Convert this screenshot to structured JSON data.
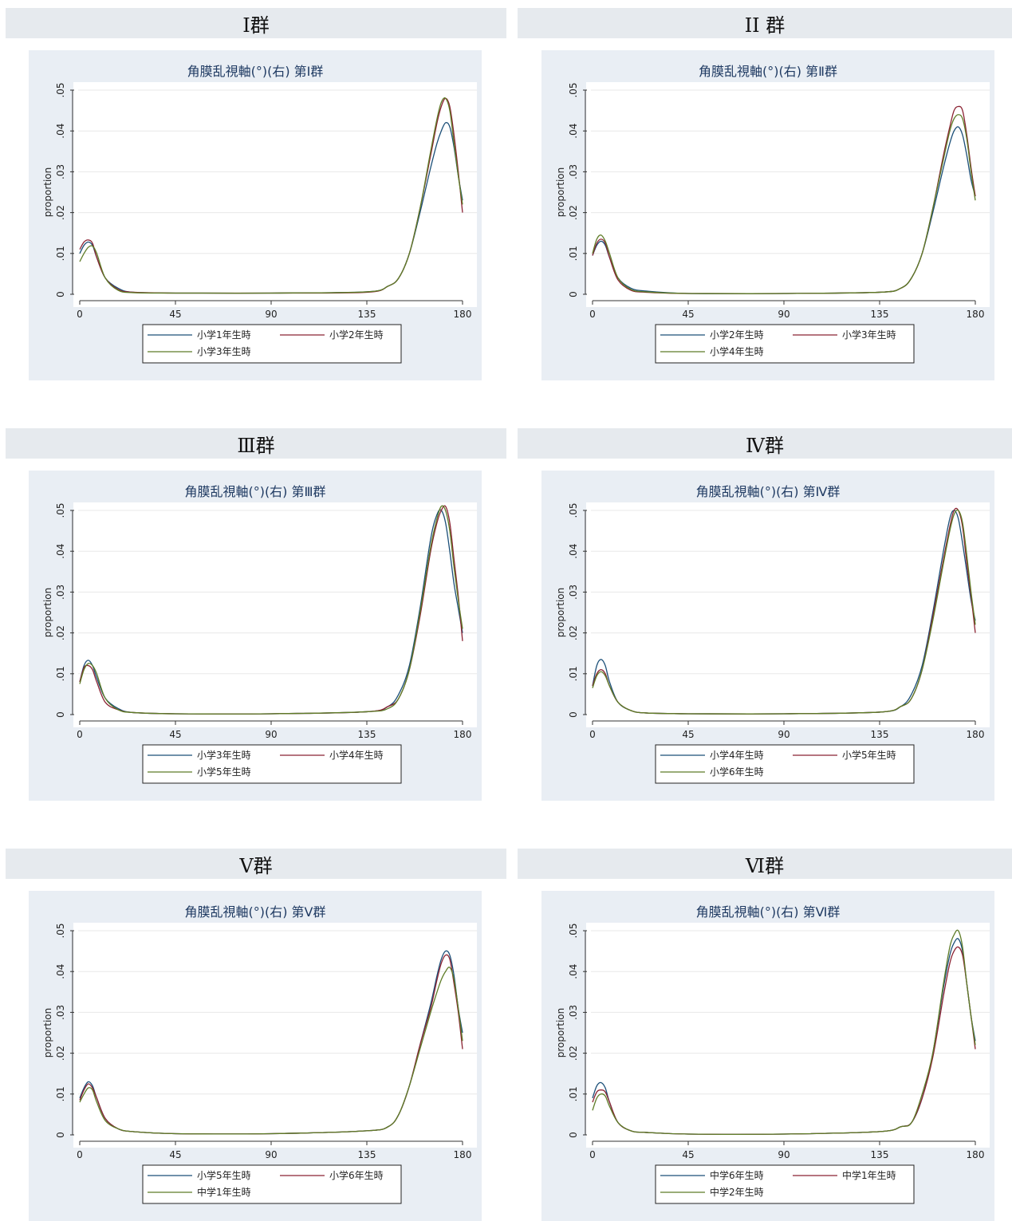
{
  "headers": [
    "Ⅰ群",
    "II 群",
    "Ⅲ群",
    "Ⅳ群",
    "Ⅴ群",
    "Ⅵ群"
  ],
  "series_colors": [
    "#1b4f78",
    "#8b2333",
    "#5e7c27"
  ],
  "chart_data": [
    {
      "type": "line",
      "title": "角膜乱視軸(°)(右) 第Ⅰ群",
      "xlabel": "",
      "ylabel": "proportion",
      "xlim": [
        0,
        180
      ],
      "ylim": [
        0,
        0.05
      ],
      "xticks": [
        "0",
        "45",
        "90",
        "135",
        "180"
      ],
      "yticks": [
        "0",
        ".01",
        ".02",
        ".03",
        ".04",
        ".05"
      ],
      "grid": true,
      "legend_position": "bottom",
      "x": [
        0,
        2,
        4,
        6,
        8,
        12,
        18,
        25,
        45,
        90,
        135,
        145,
        150,
        155,
        160,
        165,
        168,
        170,
        172,
        174,
        176,
        178,
        180
      ],
      "series": [
        {
          "name": "小学1年生時",
          "values": [
            0.01,
            0.012,
            0.0128,
            0.012,
            0.009,
            0.004,
            0.0015,
            0.0005,
            0.0003,
            0.0003,
            0.0006,
            0.002,
            0.004,
            0.01,
            0.02,
            0.031,
            0.037,
            0.04,
            0.042,
            0.041,
            0.036,
            0.029,
            0.023
          ]
        },
        {
          "name": "小学2年生時",
          "values": [
            0.011,
            0.0128,
            0.0133,
            0.0125,
            0.009,
            0.004,
            0.0012,
            0.0005,
            0.0003,
            0.0003,
            0.0005,
            0.002,
            0.004,
            0.01,
            0.021,
            0.034,
            0.042,
            0.046,
            0.048,
            0.046,
            0.039,
            0.03,
            0.02
          ]
        },
        {
          "name": "小学3年生時",
          "values": [
            0.008,
            0.01,
            0.0115,
            0.0118,
            0.01,
            0.004,
            0.001,
            0.0004,
            0.0003,
            0.0003,
            0.0006,
            0.002,
            0.004,
            0.01,
            0.021,
            0.035,
            0.043,
            0.047,
            0.048,
            0.045,
            0.037,
            0.029,
            0.022
          ]
        }
      ]
    },
    {
      "type": "line",
      "title": "角膜乱視軸(°)(右) 第Ⅱ群",
      "xlabel": "",
      "ylabel": "proportion",
      "xlim": [
        0,
        180
      ],
      "ylim": [
        0,
        0.05
      ],
      "xticks": [
        "0",
        "45",
        "90",
        "135",
        "180"
      ],
      "yticks": [
        "0",
        ".01",
        ".02",
        ".03",
        ".04",
        ".05"
      ],
      "grid": true,
      "legend_position": "bottom",
      "x": [
        0,
        2,
        4,
        6,
        8,
        12,
        18,
        25,
        45,
        90,
        135,
        145,
        150,
        155,
        160,
        165,
        168,
        170,
        172,
        174,
        176,
        178,
        180
      ],
      "series": [
        {
          "name": "小学2年生時",
          "values": [
            0.0095,
            0.012,
            0.013,
            0.012,
            0.009,
            0.004,
            0.0015,
            0.0008,
            0.0002,
            0.0002,
            0.0005,
            0.0015,
            0.004,
            0.01,
            0.02,
            0.031,
            0.037,
            0.04,
            0.041,
            0.039,
            0.034,
            0.028,
            0.024
          ]
        },
        {
          "name": "小学3年生時",
          "values": [
            0.0095,
            0.0125,
            0.0135,
            0.0125,
            0.009,
            0.0035,
            0.001,
            0.0005,
            0.0002,
            0.0002,
            0.0005,
            0.0015,
            0.004,
            0.01,
            0.021,
            0.034,
            0.041,
            0.045,
            0.046,
            0.045,
            0.039,
            0.031,
            0.024
          ]
        },
        {
          "name": "小学4年生時",
          "values": [
            0.01,
            0.0135,
            0.0145,
            0.013,
            0.01,
            0.004,
            0.0012,
            0.0006,
            0.0002,
            0.0002,
            0.0005,
            0.0015,
            0.004,
            0.01,
            0.021,
            0.033,
            0.04,
            0.043,
            0.044,
            0.043,
            0.038,
            0.03,
            0.023
          ]
        }
      ]
    },
    {
      "type": "line",
      "title": "角膜乱視軸(°)(右) 第Ⅲ群",
      "xlabel": "",
      "ylabel": "proportion",
      "xlim": [
        0,
        180
      ],
      "ylim": [
        0,
        0.05
      ],
      "xticks": [
        "0",
        "45",
        "90",
        "135",
        "180"
      ],
      "yticks": [
        "0",
        ".01",
        ".02",
        ".03",
        ".04",
        ".05"
      ],
      "grid": true,
      "legend_position": "bottom",
      "x": [
        0,
        2,
        4,
        6,
        8,
        12,
        18,
        25,
        45,
        90,
        135,
        145,
        150,
        155,
        160,
        165,
        168,
        170,
        172,
        174,
        176,
        178,
        180
      ],
      "series": [
        {
          "name": "小学3年生時",
          "values": [
            0.008,
            0.012,
            0.0133,
            0.012,
            0.009,
            0.004,
            0.0015,
            0.0005,
            0.0002,
            0.0002,
            0.0007,
            0.002,
            0.005,
            0.012,
            0.026,
            0.043,
            0.049,
            0.05,
            0.047,
            0.04,
            0.032,
            0.026,
            0.02
          ]
        },
        {
          "name": "小学4年生時",
          "values": [
            0.008,
            0.0115,
            0.012,
            0.011,
            0.008,
            0.003,
            0.0012,
            0.0005,
            0.0002,
            0.0002,
            0.0007,
            0.002,
            0.004,
            0.011,
            0.024,
            0.04,
            0.047,
            0.05,
            0.051,
            0.047,
            0.038,
            0.029,
            0.018
          ]
        },
        {
          "name": "小学5年生時",
          "values": [
            0.0075,
            0.011,
            0.0125,
            0.012,
            0.01,
            0.004,
            0.0012,
            0.0005,
            0.0002,
            0.0002,
            0.0007,
            0.0015,
            0.004,
            0.011,
            0.025,
            0.041,
            0.048,
            0.051,
            0.05,
            0.045,
            0.036,
            0.028,
            0.021
          ]
        }
      ]
    },
    {
      "type": "line",
      "title": "角膜乱視軸(°)(右) 第Ⅳ群",
      "xlabel": "",
      "ylabel": "proportion",
      "xlim": [
        0,
        180
      ],
      "ylim": [
        0,
        0.05
      ],
      "xticks": [
        "0",
        "45",
        "90",
        "135",
        "180"
      ],
      "yticks": [
        "0",
        ".01",
        ".02",
        ".03",
        ".04",
        ".05"
      ],
      "grid": true,
      "legend_position": "bottom",
      "x": [
        0,
        2,
        4,
        6,
        8,
        12,
        18,
        25,
        45,
        90,
        135,
        145,
        150,
        155,
        160,
        165,
        168,
        170,
        172,
        174,
        176,
        178,
        180
      ],
      "series": [
        {
          "name": "小学4年生時",
          "values": [
            0.007,
            0.012,
            0.0135,
            0.012,
            0.008,
            0.003,
            0.001,
            0.0004,
            0.0002,
            0.0002,
            0.0006,
            0.002,
            0.005,
            0.012,
            0.025,
            0.04,
            0.048,
            0.05,
            0.048,
            0.042,
            0.035,
            0.028,
            0.023
          ]
        },
        {
          "name": "小学5年生時",
          "values": [
            0.007,
            0.01,
            0.011,
            0.01,
            0.007,
            0.003,
            0.001,
            0.0004,
            0.0002,
            0.0002,
            0.0006,
            0.002,
            0.004,
            0.011,
            0.024,
            0.038,
            0.046,
            0.05,
            0.05,
            0.046,
            0.037,
            0.029,
            0.02
          ]
        },
        {
          "name": "小学6年生時",
          "values": [
            0.0065,
            0.0095,
            0.0105,
            0.0095,
            0.007,
            0.003,
            0.001,
            0.0004,
            0.0002,
            0.0002,
            0.0006,
            0.002,
            0.004,
            0.011,
            0.023,
            0.037,
            0.045,
            0.049,
            0.05,
            0.047,
            0.039,
            0.03,
            0.022
          ]
        }
      ]
    },
    {
      "type": "line",
      "title": "角膜乱視軸(°)(右) 第Ⅴ群",
      "xlabel": "",
      "ylabel": "proportion",
      "xlim": [
        0,
        180
      ],
      "ylim": [
        0,
        0.05
      ],
      "xticks": [
        "0",
        "45",
        "90",
        "135",
        "180"
      ],
      "yticks": [
        "0",
        ".01",
        ".02",
        ".03",
        ".04",
        ".05"
      ],
      "grid": true,
      "legend_position": "bottom",
      "x": [
        0,
        2,
        4,
        6,
        8,
        12,
        18,
        25,
        45,
        90,
        135,
        145,
        150,
        155,
        160,
        165,
        168,
        170,
        172,
        174,
        176,
        178,
        180
      ],
      "series": [
        {
          "name": "小学5年生時",
          "values": [
            0.009,
            0.0115,
            0.013,
            0.012,
            0.009,
            0.004,
            0.0015,
            0.0008,
            0.0003,
            0.0003,
            0.001,
            0.002,
            0.005,
            0.012,
            0.022,
            0.032,
            0.039,
            0.043,
            0.045,
            0.044,
            0.039,
            0.031,
            0.025
          ]
        },
        {
          "name": "小学6年生時",
          "values": [
            0.0085,
            0.011,
            0.0125,
            0.0115,
            0.009,
            0.004,
            0.0015,
            0.0008,
            0.0003,
            0.0003,
            0.001,
            0.002,
            0.005,
            0.012,
            0.022,
            0.031,
            0.038,
            0.042,
            0.044,
            0.043,
            0.037,
            0.03,
            0.021
          ]
        },
        {
          "name": "中学1年生時",
          "values": [
            0.008,
            0.01,
            0.0115,
            0.011,
            0.008,
            0.0035,
            0.0015,
            0.0008,
            0.0003,
            0.0003,
            0.001,
            0.002,
            0.005,
            0.012,
            0.021,
            0.03,
            0.035,
            0.038,
            0.04,
            0.041,
            0.038,
            0.031,
            0.023
          ]
        }
      ]
    },
    {
      "type": "line",
      "title": "角膜乱視軸(°)(右) 第Ⅵ群",
      "xlabel": "",
      "ylabel": "proportion",
      "xlim": [
        0,
        180
      ],
      "ylim": [
        0,
        0.05
      ],
      "xticks": [
        "0",
        "45",
        "90",
        "135",
        "180"
      ],
      "yticks": [
        "0",
        ".01",
        ".02",
        ".03",
        ".04",
        ".05"
      ],
      "grid": true,
      "legend_position": "bottom",
      "x": [
        0,
        2,
        4,
        6,
        8,
        12,
        18,
        25,
        45,
        90,
        135,
        145,
        150,
        155,
        160,
        165,
        168,
        170,
        172,
        174,
        176,
        178,
        180
      ],
      "series": [
        {
          "name": "中学6年生時",
          "values": [
            0.009,
            0.012,
            0.0128,
            0.0115,
            0.008,
            0.003,
            0.001,
            0.0006,
            0.0002,
            0.0002,
            0.0008,
            0.002,
            0.003,
            0.009,
            0.02,
            0.036,
            0.044,
            0.047,
            0.048,
            0.045,
            0.037,
            0.029,
            0.023
          ]
        },
        {
          "name": "中学1年生時",
          "values": [
            0.008,
            0.0105,
            0.011,
            0.0105,
            0.008,
            0.003,
            0.001,
            0.0006,
            0.0002,
            0.0002,
            0.0008,
            0.002,
            0.003,
            0.009,
            0.019,
            0.034,
            0.042,
            0.045,
            0.046,
            0.044,
            0.037,
            0.029,
            0.021
          ]
        },
        {
          "name": "中学2年生時",
          "values": [
            0.006,
            0.009,
            0.01,
            0.0095,
            0.007,
            0.003,
            0.001,
            0.0006,
            0.0002,
            0.0002,
            0.0008,
            0.002,
            0.003,
            0.01,
            0.02,
            0.037,
            0.046,
            0.049,
            0.05,
            0.046,
            0.037,
            0.029,
            0.022
          ]
        }
      ]
    }
  ]
}
